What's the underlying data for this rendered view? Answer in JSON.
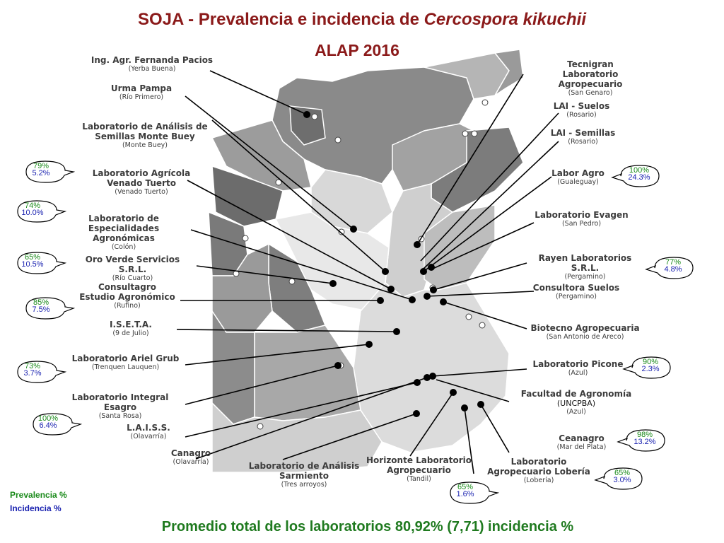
{
  "title_main": "SOJA - Prevalencia e incidencia de ",
  "title_species": "Cercospora kikuchii",
  "subtitle": "ALAP 2016",
  "legend": {
    "prevalence": "Prevalencia %",
    "incidence": "Incidencia %"
  },
  "footer": "Promedio total de los laboratorios 80,92% (7,71) incidencia %",
  "colors": {
    "title": "#8b1a1a",
    "prevalence": "#1a8a1a",
    "incidence": "#1a22b0",
    "footer": "#1f7a1f"
  },
  "labs": [
    {
      "id": "pacios",
      "name": "Ing. Agr. Fernanda Pacios",
      "loc": "(Yerba Buena)"
    },
    {
      "id": "urma",
      "name": "Urma Pampa",
      "loc": "(Río Primero)"
    },
    {
      "id": "monte",
      "name": "Laboratorio de Análisis de",
      "name2": "Semillas Monte Buey",
      "loc": "(Monte Buey)"
    },
    {
      "id": "venado",
      "name": "Laboratorio Agrícola",
      "name2": "Venado Tuerto",
      "loc": "(Venado Tuerto)"
    },
    {
      "id": "colon",
      "name": "Laboratorio de",
      "name2": "Especialidades Agronómicas",
      "loc": "(Colón)"
    },
    {
      "id": "oro",
      "name": "Oro Verde Servicios S.R.L.",
      "loc": "(Río Cuarto)"
    },
    {
      "id": "consultagro",
      "name": "Consultagro",
      "name2": "Estudio Agronómico",
      "loc": "(Rufino)"
    },
    {
      "id": "iseta",
      "name": "I.S.E.T.A.",
      "loc": "(9 de Julio)"
    },
    {
      "id": "grub",
      "name": "Laboratorio Ariel Grub",
      "loc": "(Trenquen Lauquen)"
    },
    {
      "id": "esagro",
      "name": "Laboratorio Integral Esagro",
      "loc": "(Santa Rosa)"
    },
    {
      "id": "laiss",
      "name": "L.A.I.S.S.",
      "loc": "(Olavarría)"
    },
    {
      "id": "canagro",
      "name": "Canagro",
      "loc": "(Olavarría)"
    },
    {
      "id": "sarmiento",
      "name": "Laboratorio de Análisis",
      "name2": "Sarmiento",
      "loc": "(Tres arroyos)"
    },
    {
      "id": "horizonte",
      "name": "Horizonte Laboratorio",
      "name2": "Agropecuario",
      "loc": "(Tandil)"
    },
    {
      "id": "loberia",
      "name": "Laboratorio",
      "name2": "Agropecuario Lobería",
      "loc": "(Lobería)"
    },
    {
      "id": "ceanagro",
      "name": "Ceanagro",
      "loc": "(Mar del Plata)"
    },
    {
      "id": "facultad",
      "name": "Facultad de Agronomía",
      "loc_big": "(UNCPBA)",
      "loc": "(Azul)"
    },
    {
      "id": "picone",
      "name": "Laboratorio Picone",
      "loc": "(Azul)"
    },
    {
      "id": "biotecno",
      "name": "Biotecno Agropecuaria",
      "loc": "(San  Antonio de Areco)"
    },
    {
      "id": "suelos",
      "name": "Consultora Suelos",
      "loc": "(Pergamino)"
    },
    {
      "id": "rayen",
      "name": "Rayen Laboratorios S.R.L.",
      "loc": "(Pergamino)"
    },
    {
      "id": "evagen",
      "name": "Laboratorio Evagen",
      "loc": "(San Pedro)"
    },
    {
      "id": "laborgro",
      "name": "Labor Agro",
      "loc": "(Gualeguay)"
    },
    {
      "id": "laisem",
      "name": "LAI - Semillas",
      "loc": "(Rosario)"
    },
    {
      "id": "laisue",
      "name": "LAI - Suelos",
      "loc": "(Rosario)"
    },
    {
      "id": "tecnigran",
      "name": "Tecnigran",
      "name2": "Laboratorio Agropecuario",
      "loc": "(San Genaro)"
    }
  ],
  "bubbles": [
    {
      "id": "b1",
      "prev": "79%",
      "inc": "5.2%"
    },
    {
      "id": "b2",
      "prev": "74%",
      "inc": "10.0%"
    },
    {
      "id": "b3",
      "prev": "65%",
      "inc": "10.5%"
    },
    {
      "id": "b4",
      "prev": "85%",
      "inc": "7.5%"
    },
    {
      "id": "b5",
      "prev": "73%",
      "inc": "3.7%"
    },
    {
      "id": "b6",
      "prev": "100%",
      "inc": "6.4%"
    },
    {
      "id": "b7",
      "prev": "65%",
      "inc": "1.6%"
    },
    {
      "id": "b8",
      "prev": "65%",
      "inc": "3.0%"
    },
    {
      "id": "b9",
      "prev": "98%",
      "inc": "13.2%"
    },
    {
      "id": "b10",
      "prev": "90%",
      "inc": "2.3%"
    },
    {
      "id": "b11",
      "prev": "77%",
      "inc": "4.8%"
    },
    {
      "id": "b12",
      "prev": "100%",
      "inc": "24.3%"
    }
  ]
}
